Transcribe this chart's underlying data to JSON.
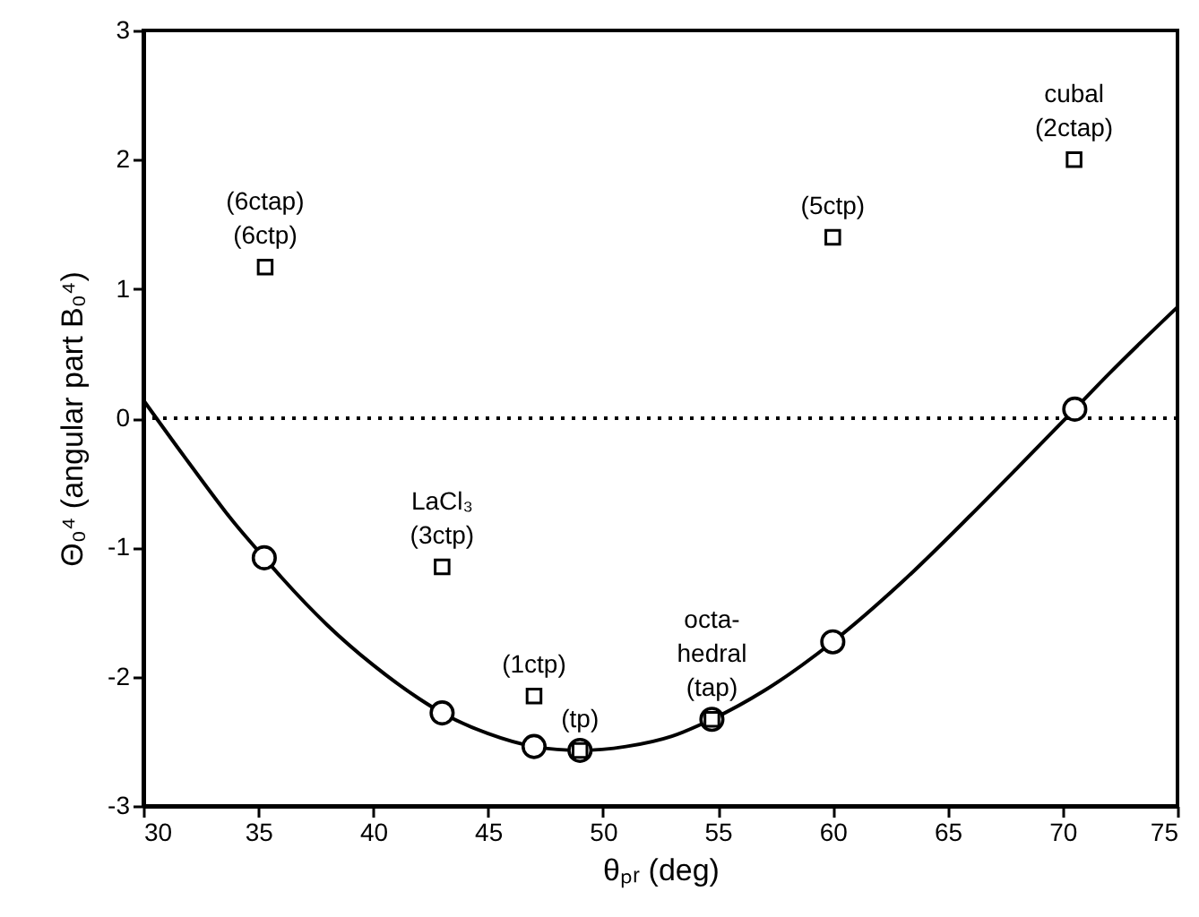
{
  "chart_data": {
    "type": "scatter",
    "xlabel": "θₚᵣ (deg)",
    "ylabel": "Θ₀⁴  (angular part B₀⁴)",
    "xlim": [
      30,
      75
    ],
    "xticks": [
      30,
      35,
      40,
      45,
      50,
      55,
      60,
      65,
      70,
      75
    ],
    "ylim": [
      -3,
      3
    ],
    "yticks": [
      -3,
      -2,
      -1,
      0,
      1,
      2,
      3
    ],
    "grid": false,
    "series": [
      {
        "type": "line",
        "color": "#000000",
        "marker": "none",
        "line_style": "solid",
        "x": [
          30,
          32,
          34,
          35.26,
          36,
          38,
          40,
          42,
          43,
          45,
          47,
          49,
          51,
          53,
          54.74,
          57,
          60,
          63,
          66,
          68,
          70.53,
          72,
          75
        ],
        "values": [
          0.14,
          -0.35,
          -0.82,
          -1.08,
          -1.23,
          -1.6,
          -1.91,
          -2.17,
          -2.28,
          -2.44,
          -2.54,
          -2.57,
          -2.54,
          -2.46,
          -2.33,
          -2.11,
          -1.73,
          -1.27,
          -0.75,
          -0.39,
          0.07,
          0.34,
          0.86
        ]
      },
      {
        "color": "#000000",
        "marker": "circle",
        "x": [
          35.26,
          43,
          47,
          49,
          54.74,
          60,
          70.53
        ],
        "values": [
          -1.08,
          -2.28,
          -2.54,
          -2.57,
          -2.33,
          -1.73,
          0.07
        ]
      },
      {
        "color": "#000000",
        "marker": "square",
        "x": [
          35.3,
          43,
          47,
          49,
          54.74,
          60,
          70.5
        ],
        "values": [
          1.17,
          -1.15,
          -2.15,
          -2.57,
          -2.33,
          1.4,
          2.0
        ]
      }
    ],
    "ref_lines": [
      {
        "axis": "y",
        "value": 0,
        "line_style": "dotted",
        "color": "#000000"
      }
    ],
    "annotations": [
      {
        "text": "(6ctap)\n(6ctp)",
        "x": 35.3,
        "y": 1.17
      },
      {
        "text": "LaCl₃\n(3ctp)",
        "x": 43,
        "y": -1.15
      },
      {
        "text": "(1ctp)",
        "x": 47,
        "y": -2.15
      },
      {
        "text": "(tp)",
        "x": 49,
        "y": -2.57
      },
      {
        "text": "octa-\nhedral\n(tap)",
        "x": 54.74,
        "y": -2.33
      },
      {
        "text": "(5ctp)",
        "x": 60,
        "y": 1.4
      },
      {
        "text": "cubal\n(2ctap)",
        "x": 70.5,
        "y": 2.0
      }
    ]
  }
}
